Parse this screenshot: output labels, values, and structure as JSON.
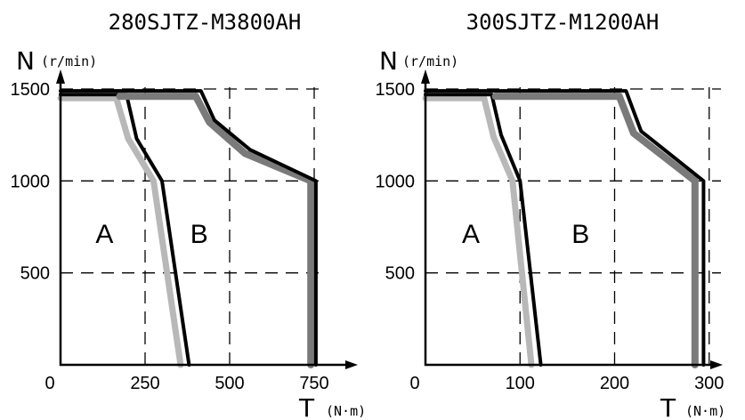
{
  "chart_data": [
    {
      "type": "line",
      "title": "280SJTZ-M3800AH",
      "ylabel_symbol": "N",
      "ylabel_unit": "(r/min)",
      "xlabel_symbol": "T",
      "xlabel_unit": "(N·m)",
      "origin_label": "0",
      "xlim": [
        0,
        800
      ],
      "ylim": [
        0,
        1500
      ],
      "x_ticks": [
        250,
        500,
        750
      ],
      "x_tick_labels": [
        "250",
        "500",
        "750"
      ],
      "y_ticks": [
        500,
        1000,
        1500
      ],
      "y_tick_labels": [
        "500",
        "1000",
        "1500"
      ],
      "grid": "dashed",
      "regions": [
        {
          "label": "A",
          "x": 130,
          "y": 720
        },
        {
          "label": "B",
          "x": 410,
          "y": 720
        }
      ],
      "series": [
        {
          "color": "#b8b8b8",
          "width": 7,
          "points": [
            [
              0,
              1450
            ],
            [
              165,
              1450
            ],
            [
              200,
              1230
            ],
            [
              275,
              1000
            ],
            [
              355,
              0
            ]
          ]
        },
        {
          "color": "#000000",
          "width": 4,
          "points": [
            [
              0,
              1470
            ],
            [
              195,
              1470
            ],
            [
              225,
              1230
            ],
            [
              300,
              1000
            ],
            [
              380,
              0
            ]
          ]
        },
        {
          "color": "#7a7a7a",
          "width": 8,
          "points": [
            [
              175,
              1460
            ],
            [
              400,
              1460
            ],
            [
              440,
              1320
            ],
            [
              545,
              1150
            ],
            [
              740,
              1000
            ],
            [
              740,
              0
            ]
          ]
        },
        {
          "color": "#000000",
          "width": 4,
          "points": [
            [
              0,
              1490
            ],
            [
              415,
              1490
            ],
            [
              455,
              1330
            ],
            [
              560,
              1170
            ],
            [
              755,
              1000
            ],
            [
              755,
              0
            ]
          ]
        }
      ]
    },
    {
      "type": "line",
      "title": "300SJTZ-M1200AH",
      "ylabel_symbol": "N",
      "ylabel_unit": "(r/min)",
      "xlabel_symbol": "T",
      "xlabel_unit": "(N·m)",
      "origin_label": "0",
      "xlim": [
        0,
        320
      ],
      "ylim": [
        0,
        1500
      ],
      "x_ticks": [
        100,
        200,
        300
      ],
      "x_tick_labels": [
        "100",
        "200",
        "300"
      ],
      "y_ticks": [
        500,
        1000,
        1500
      ],
      "y_tick_labels": [
        "500",
        "1000",
        "1500"
      ],
      "grid": "dashed",
      "regions": [
        {
          "label": "A",
          "x": 48,
          "y": 720
        },
        {
          "label": "B",
          "x": 164,
          "y": 720
        }
      ],
      "series": [
        {
          "color": "#b8b8b8",
          "width": 7,
          "points": [
            [
              0,
              1450
            ],
            [
              62,
              1450
            ],
            [
              72,
              1240
            ],
            [
              92,
              1000
            ],
            [
              112,
              0
            ]
          ]
        },
        {
          "color": "#000000",
          "width": 4,
          "points": [
            [
              0,
              1470
            ],
            [
              70,
              1470
            ],
            [
              80,
              1250
            ],
            [
              100,
              1000
            ],
            [
              122,
              0
            ]
          ]
        },
        {
          "color": "#7a7a7a",
          "width": 8,
          "points": [
            [
              74,
              1460
            ],
            [
              205,
              1460
            ],
            [
              220,
              1260
            ],
            [
              285,
              1000
            ],
            [
              285,
              0
            ]
          ]
        },
        {
          "color": "#000000",
          "width": 4,
          "points": [
            [
              0,
              1490
            ],
            [
              212,
              1490
            ],
            [
              228,
              1270
            ],
            [
              294,
              1000
            ],
            [
              294,
              0
            ]
          ]
        }
      ]
    }
  ]
}
